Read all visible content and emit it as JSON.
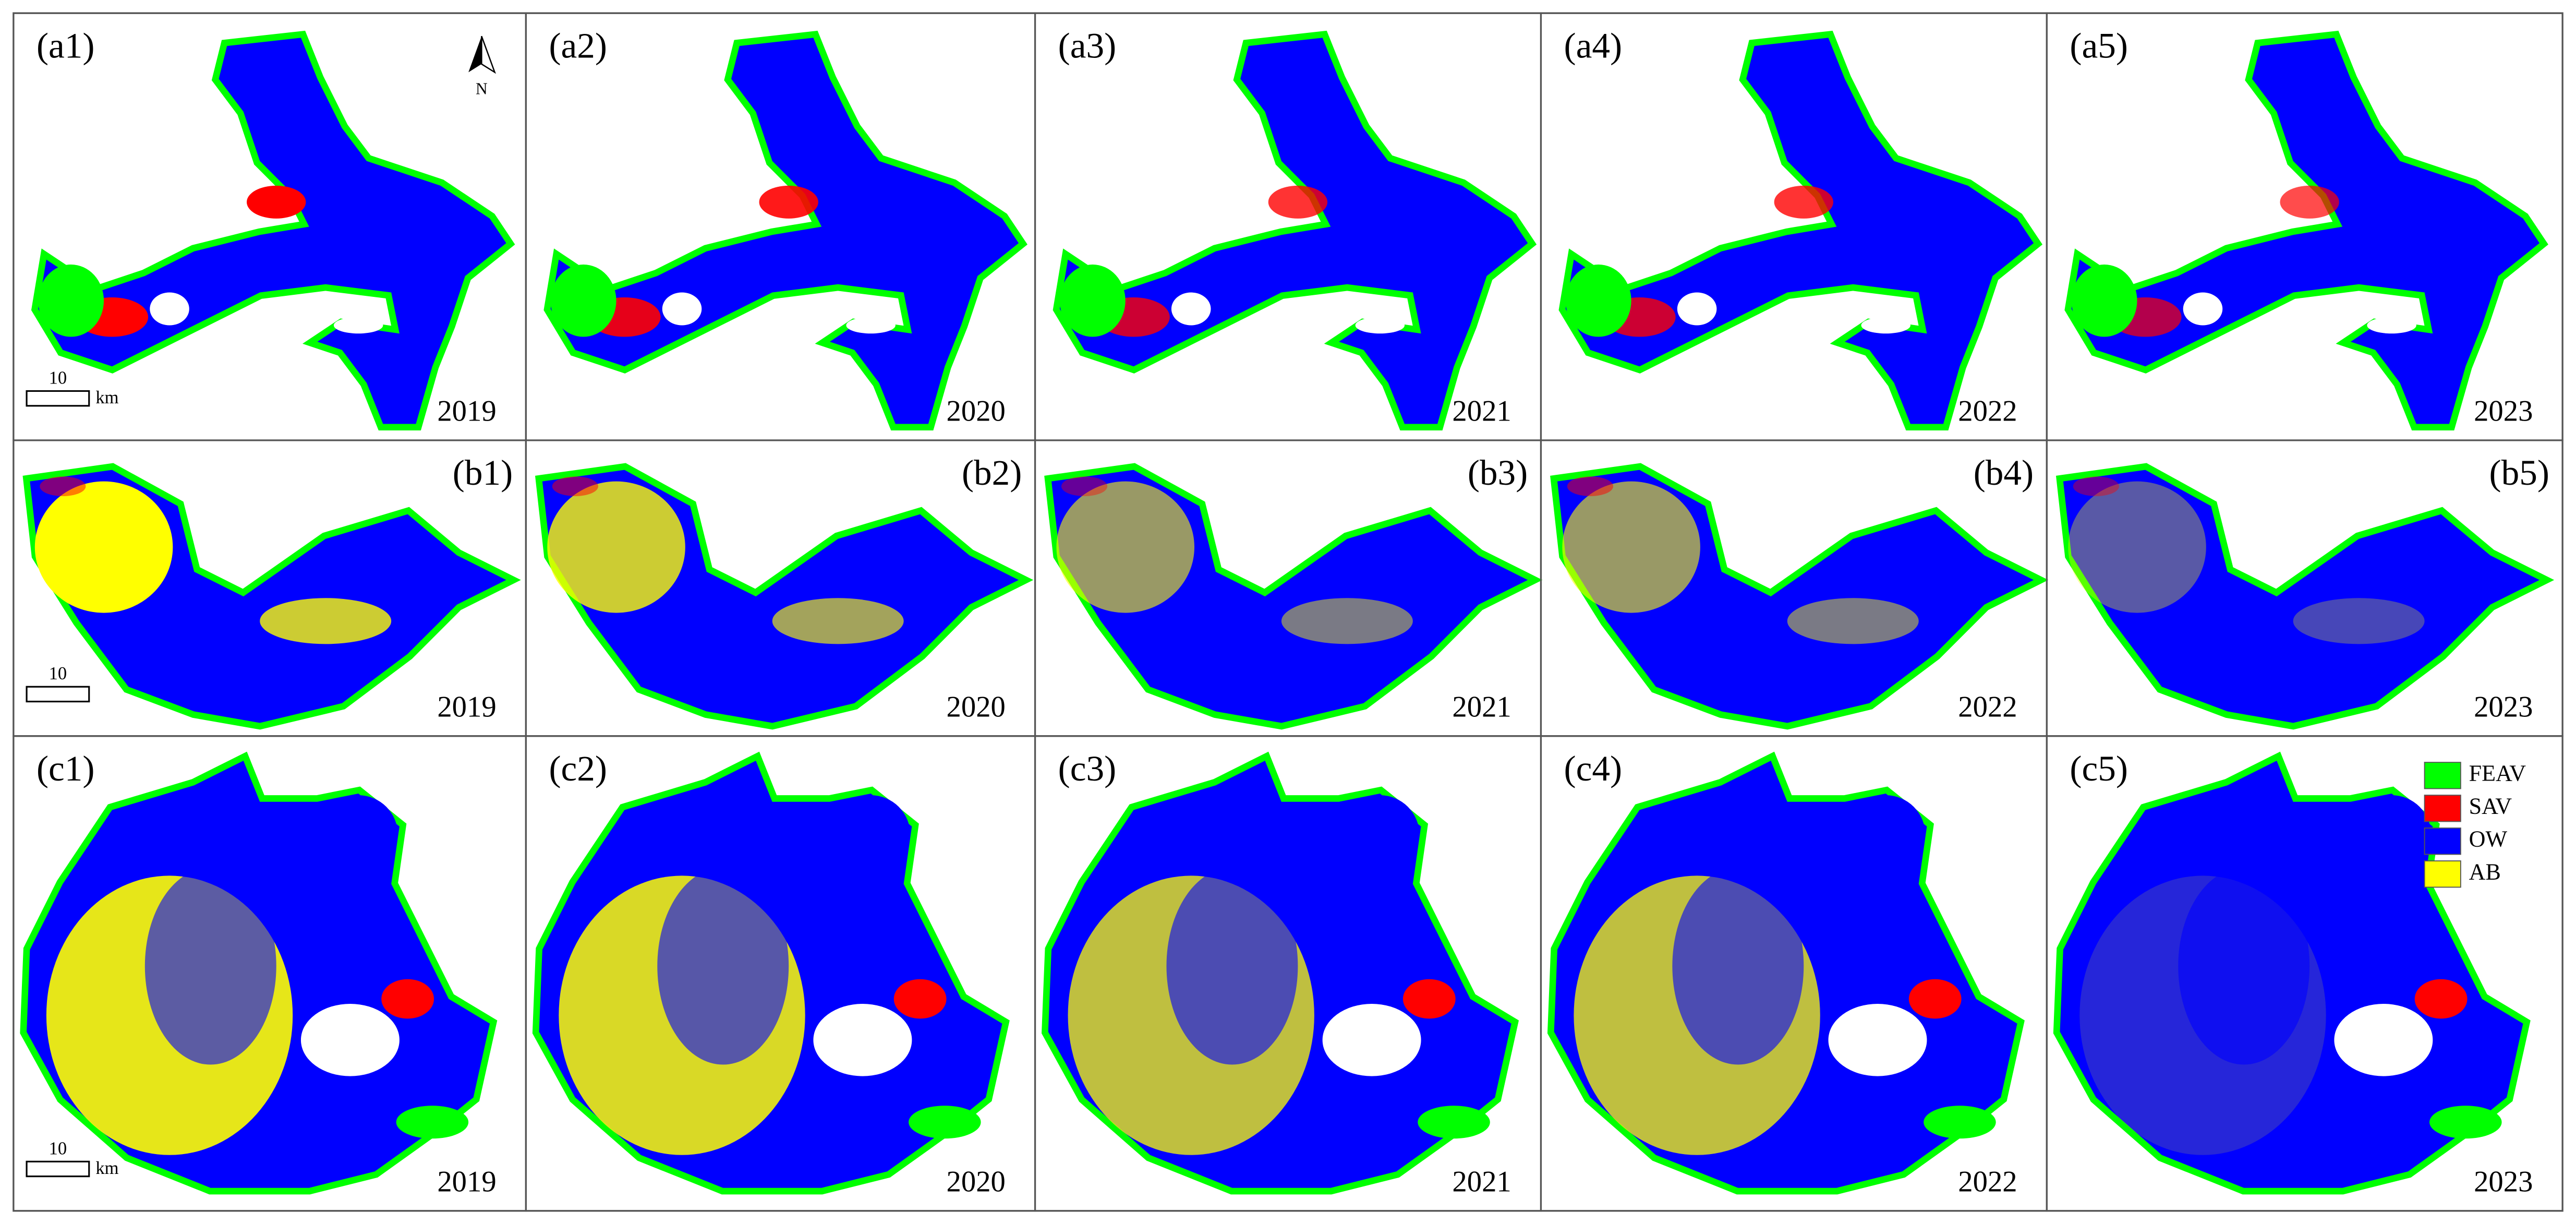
{
  "panels": [
    {
      "label": "(a1)",
      "year": "2019"
    },
    {
      "label": "(a2)",
      "year": "2020"
    },
    {
      "label": "(a3)",
      "year": "2021"
    },
    {
      "label": "(a4)",
      "year": "2022"
    },
    {
      "label": "(a5)",
      "year": "2023"
    },
    {
      "label": "(b1)",
      "year": "2019"
    },
    {
      "label": "(b2)",
      "year": "2020"
    },
    {
      "label": "(b3)",
      "year": "2021"
    },
    {
      "label": "(b4)",
      "year": "2022"
    },
    {
      "label": "(b5)",
      "year": "2023"
    },
    {
      "label": "(c1)",
      "year": "2019"
    },
    {
      "label": "(c2)",
      "year": "2020"
    },
    {
      "label": "(c3)",
      "year": "2021"
    },
    {
      "label": "(c4)",
      "year": "2022"
    },
    {
      "label": "(c5)",
      "year": "2023"
    }
  ],
  "scale_bars": [
    {
      "value": "10",
      "unit": "km"
    },
    {
      "value": "10"
    },
    {
      "value": "10",
      "unit": "km"
    }
  ],
  "north_arrow": "N",
  "legend": [
    {
      "name": "FEAV",
      "color": "#00ff00"
    },
    {
      "name": "SAV",
      "color": "#ff0000"
    },
    {
      "name": "OW",
      "color": "#0000ff"
    },
    {
      "name": "AB",
      "color": "#ffff00"
    }
  ]
}
